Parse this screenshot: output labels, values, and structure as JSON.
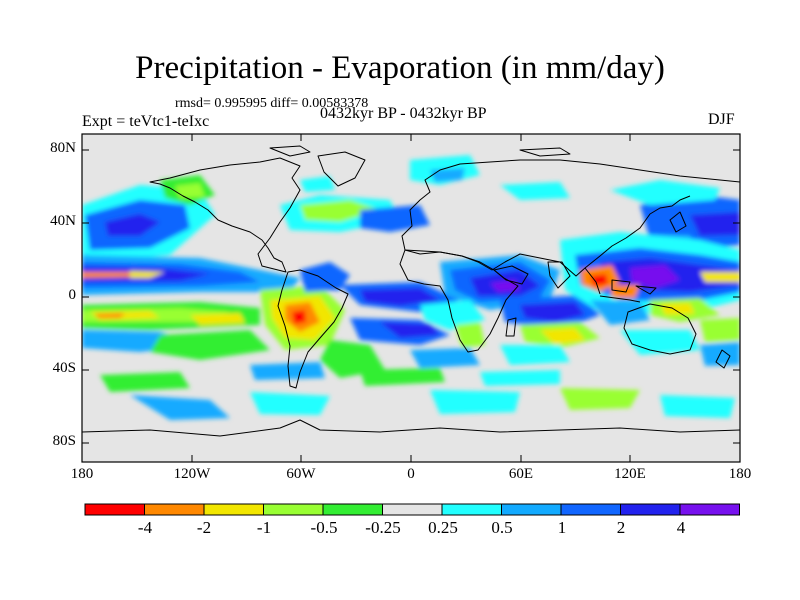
{
  "title": "Precipitation - Evaporation (in mm/day)",
  "stats": "rmsd= 0.995995 diff= 0.00583378",
  "experiment": "Expt = teVtc1-teIxc",
  "period": "0432kyr BP - 0432kyr BP",
  "season": "DJF",
  "map": {
    "background_color": "#e5e5e5",
    "lon_ticks": [
      "180",
      "120W",
      "60W",
      "0",
      "60E",
      "120E",
      "180"
    ],
    "lat_ticks": [
      "80N",
      "40N",
      "0",
      "40S",
      "80S"
    ]
  },
  "colorbar": {
    "labels": [
      "-4",
      "-2",
      "-1",
      "-0.5",
      "-0.25",
      "0.25",
      "0.5",
      "1",
      "2",
      "4"
    ],
    "colors": [
      "#ff0000",
      "#ff8800",
      "#f2e600",
      "#99ff33",
      "#33ee33",
      "#e5e5e5",
      "#22ffff",
      "#12aaff",
      "#1166ff",
      "#2222ee",
      "#7711ee"
    ]
  },
  "field_palette": {
    "strong_wet": "#7711ee",
    "wet": "#2222ee",
    "moist": "#1166ff",
    "light_moist": "#12aaff",
    "slight_moist": "#22ffff",
    "slight_dry": "#33ee33",
    "light_dry": "#99ff33",
    "dry": "#f2e600",
    "very_dry": "#ff8800",
    "extreme_dry": "#ff0000"
  }
}
